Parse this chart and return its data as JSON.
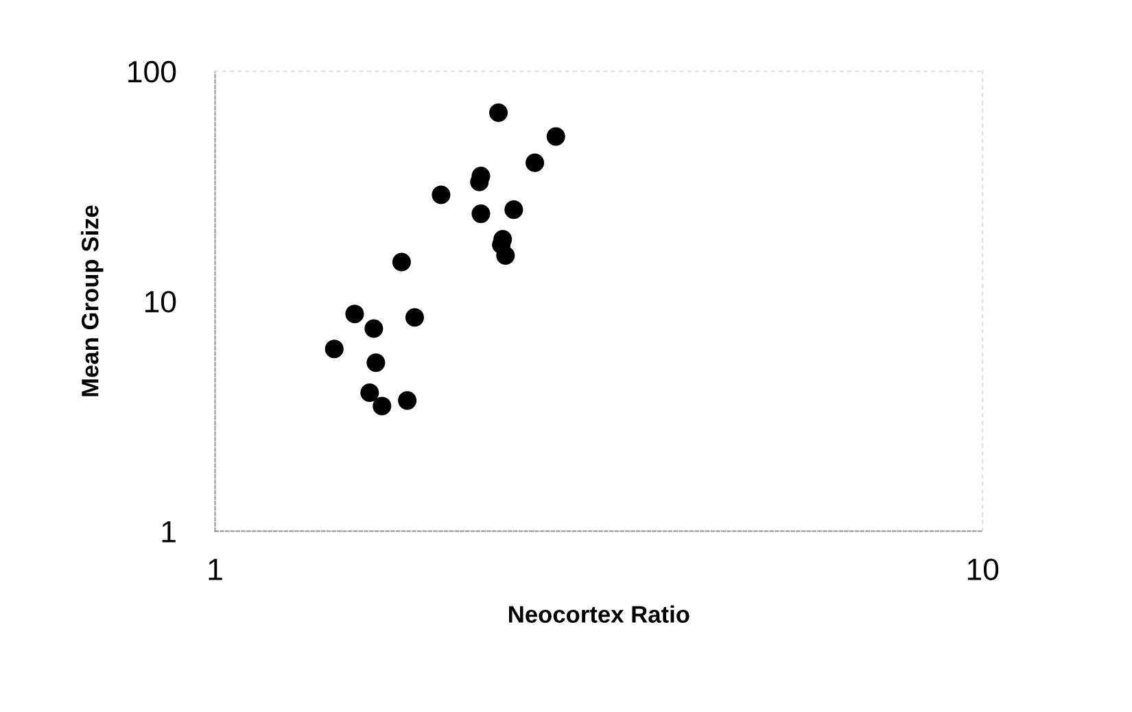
{
  "chart_data": {
    "type": "scatter",
    "xlabel": "Neocortex Ratio",
    "ylabel": "Mean Group Size",
    "log": "xy",
    "xlim": [
      1,
      10
    ],
    "xticks": [
      1,
      10
    ],
    "ylim": [
      1,
      100
    ],
    "yticks": [
      1,
      10,
      100
    ],
    "marker": "circle",
    "series": [
      {
        "color": "#000000",
        "x": [
          2.34,
          2.78,
          2.61,
          2.22,
          2.21,
          1.97,
          2.22,
          2.45,
          2.37,
          2.36,
          2.39,
          1.75,
          1.52,
          1.82,
          1.61,
          1.43,
          1.62,
          1.59,
          1.78,
          1.65
        ],
        "values": [
          66,
          52,
          40,
          35,
          33,
          29,
          24,
          25,
          18.6,
          17.6,
          15.8,
          14.8,
          8.8,
          8.5,
          7.6,
          6.2,
          5.4,
          4.0,
          3.7,
          3.5
        ]
      }
    ]
  }
}
